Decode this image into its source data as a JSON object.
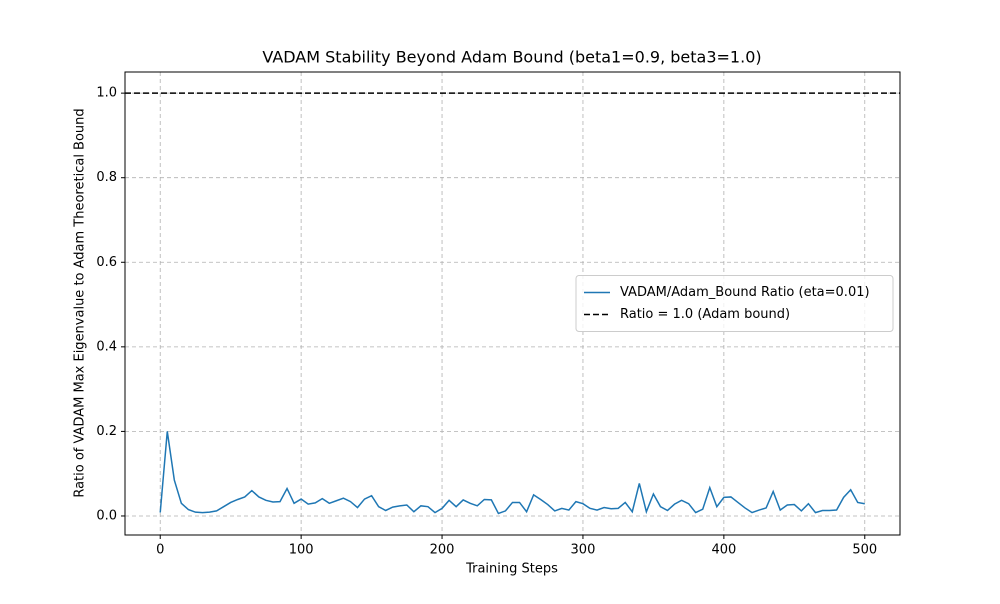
{
  "chart_data": {
    "type": "line",
    "title": "VADAM Stability Beyond Adam Bound (beta1=0.9, beta3=1.0)",
    "x_label": "Training Steps",
    "y_label": "Ratio of VADAM Max Eigenvalue to Adam Theoretical Bound",
    "x": [
      0,
      5,
      10,
      15,
      20,
      25,
      30,
      35,
      40,
      45,
      50,
      55,
      60,
      65,
      70,
      75,
      80,
      85,
      90,
      95,
      100,
      105,
      110,
      115,
      120,
      125,
      130,
      135,
      140,
      145,
      150,
      155,
      160,
      165,
      170,
      175,
      180,
      185,
      190,
      195,
      200,
      205,
      210,
      215,
      220,
      225,
      230,
      235,
      240,
      245,
      250,
      255,
      260,
      265,
      270,
      275,
      280,
      285,
      290,
      295,
      300,
      305,
      310,
      315,
      320,
      325,
      330,
      335,
      340,
      345,
      350,
      355,
      360,
      365,
      370,
      375,
      380,
      385,
      390,
      395,
      400,
      405,
      410,
      415,
      420,
      425,
      430,
      435,
      440,
      445,
      450,
      455,
      460,
      465,
      470,
      475,
      480,
      485,
      490,
      495,
      500
    ],
    "series": [
      {
        "name": "VADAM/Adam_Bound Ratio (eta=0.01)",
        "color": "#1f77b4",
        "values": [
          0.008,
          0.2,
          0.085,
          0.03,
          0.015,
          0.009,
          0.008,
          0.009,
          0.012,
          0.022,
          0.032,
          0.039,
          0.045,
          0.06,
          0.045,
          0.037,
          0.033,
          0.034,
          0.065,
          0.03,
          0.04,
          0.028,
          0.031,
          0.041,
          0.03,
          0.036,
          0.042,
          0.034,
          0.02,
          0.04,
          0.048,
          0.022,
          0.013,
          0.021,
          0.024,
          0.026,
          0.01,
          0.024,
          0.022,
          0.008,
          0.018,
          0.037,
          0.022,
          0.038,
          0.03,
          0.024,
          0.039,
          0.038,
          0.006,
          0.012,
          0.032,
          0.032,
          0.01,
          0.05,
          0.039,
          0.027,
          0.012,
          0.018,
          0.014,
          0.034,
          0.029,
          0.018,
          0.014,
          0.02,
          0.017,
          0.018,
          0.032,
          0.01,
          0.077,
          0.01,
          0.052,
          0.022,
          0.013,
          0.028,
          0.037,
          0.029,
          0.008,
          0.016,
          0.067,
          0.022,
          0.044,
          0.045,
          0.032,
          0.019,
          0.008,
          0.014,
          0.019,
          0.058,
          0.014,
          0.026,
          0.027,
          0.012,
          0.029,
          0.008,
          0.013,
          0.013,
          0.014,
          0.044,
          0.062,
          0.032,
          0.029
        ]
      }
    ],
    "hlines": [
      {
        "name": "Ratio = 1.0 (Adam bound)",
        "value": 1.0,
        "color": "#000000",
        "style": "dashed"
      }
    ],
    "xlim": [
      -25,
      525
    ],
    "ylim": [
      -0.045,
      1.05
    ],
    "xticks": [
      0,
      100,
      200,
      300,
      400,
      500
    ],
    "yticks": [
      {
        "value": 0,
        "label": "0.0"
      },
      0.2,
      0.4,
      0.6,
      0.8,
      {
        "value": 1,
        "label": "1.0"
      }
    ],
    "grid": true,
    "legend": "center right"
  }
}
